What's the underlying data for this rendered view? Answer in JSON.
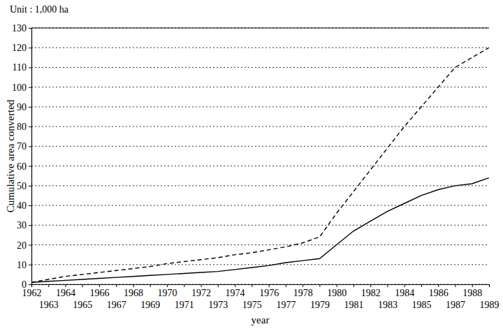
{
  "chart_data": {
    "type": "line",
    "annotation": "Unit : 1,000 ha",
    "x_label": "year",
    "y_label": "Cumulative area converted",
    "x": [
      1962,
      1963,
      1964,
      1965,
      1966,
      1967,
      1968,
      1969,
      1970,
      1971,
      1972,
      1973,
      1974,
      1975,
      1976,
      1977,
      1978,
      1979,
      1980,
      1981,
      1982,
      1983,
      1984,
      1985,
      1986,
      1987,
      1988,
      1989
    ],
    "series": [
      {
        "color": "#000000",
        "line_style": "dashed",
        "values": [
          1,
          2.5,
          4,
          5,
          6,
          7,
          8,
          9,
          10.5,
          11.5,
          12.5,
          13.5,
          15,
          16,
          17.5,
          19,
          21,
          24,
          36,
          47,
          58,
          69,
          80,
          90,
          100,
          110,
          115,
          120
        ]
      },
      {
        "color": "#000000",
        "line_style": "solid",
        "values": [
          1,
          1.5,
          2,
          2.5,
          3,
          3.5,
          4,
          4.5,
          5,
          5.5,
          6,
          6.5,
          7.5,
          8.5,
          9.5,
          11,
          12,
          13,
          20,
          27,
          32,
          37,
          41,
          45,
          48,
          50,
          51,
          54
        ]
      }
    ],
    "xlim": [
      1962,
      1989
    ],
    "xticks": [
      1962,
      1963,
      1964,
      1965,
      1966,
      1967,
      1968,
      1969,
      1970,
      1971,
      1972,
      1973,
      1974,
      1975,
      1976,
      1977,
      1978,
      1979,
      1980,
      1981,
      1982,
      1983,
      1984,
      1985,
      1986,
      1987,
      1988,
      1989
    ],
    "ylim": [
      0,
      130
    ],
    "yticks": [
      0,
      10,
      20,
      30,
      40,
      50,
      60,
      70,
      80,
      90,
      100,
      110,
      120,
      130
    ],
    "grid": true
  }
}
